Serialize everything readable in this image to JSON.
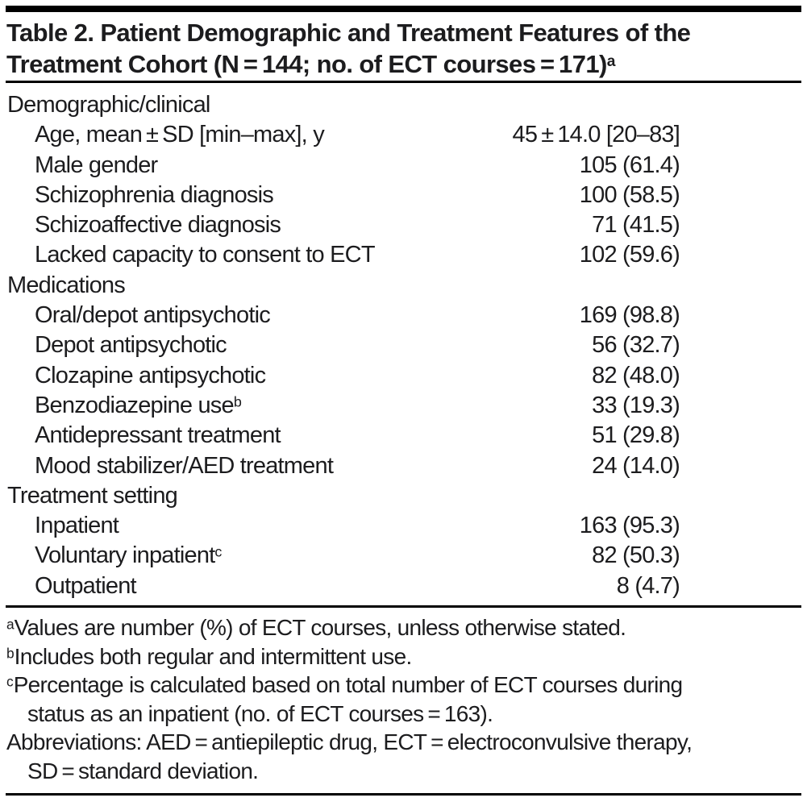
{
  "title": {
    "line1": "Table 2. Patient Demographic and Treatment Features of the",
    "line2": "Treatment Cohort (N = 144; no. of ECT courses = 171)",
    "footnote_marker": "a"
  },
  "table": {
    "sections": [
      {
        "header": "Demographic/clinical",
        "rows": [
          {
            "label": "Age, mean ± SD [min–max], y",
            "value": "45 ± 14.0 [20–83]"
          },
          {
            "label": "Male gender",
            "value": "105 (61.4)"
          },
          {
            "label": "Schizophrenia diagnosis",
            "value": "100 (58.5)"
          },
          {
            "label": "Schizoaffective diagnosis",
            "value": "71 (41.5)"
          },
          {
            "label": "Lacked capacity to consent to ECT",
            "value": "102 (59.6)"
          }
        ]
      },
      {
        "header": "Medications",
        "rows": [
          {
            "label": "Oral/depot antipsychotic",
            "value": "169 (98.8)"
          },
          {
            "label": "Depot antipsychotic",
            "value": "56 (32.7)"
          },
          {
            "label": "Clozapine antipsychotic",
            "value": "82 (48.0)"
          },
          {
            "label": "Benzodiazepine use",
            "label_sup": "b",
            "value": "33 (19.3)"
          },
          {
            "label": "Antidepressant treatment",
            "value": "51 (29.8)"
          },
          {
            "label": "Mood stabilizer/AED treatment",
            "value": "24 (14.0)"
          }
        ]
      },
      {
        "header": "Treatment setting",
        "rows": [
          {
            "label": "Inpatient",
            "value": "163 (95.3)"
          },
          {
            "label": "Voluntary inpatient",
            "label_sup": "c",
            "value": "82 (50.3)"
          },
          {
            "label": "Outpatient",
            "value": "8 (4.7)"
          }
        ]
      }
    ]
  },
  "footnotes": [
    {
      "marker": "a",
      "lines": [
        "Values are number (%) of ECT courses, unless otherwise stated."
      ]
    },
    {
      "marker": "b",
      "lines": [
        "Includes both regular and intermittent use."
      ]
    },
    {
      "marker": "c",
      "lines": [
        "Percentage is calculated based on total number of ECT courses during",
        "status as an inpatient (no. of ECT courses = 163)."
      ]
    },
    {
      "marker": "",
      "lines": [
        "Abbreviations: AED = antiepileptic drug, ECT = electroconvulsive therapy,",
        "SD = standard deviation."
      ]
    }
  ],
  "colors": {
    "text": "#1c1c1e",
    "rule": "#000000",
    "background": "#ffffff"
  }
}
